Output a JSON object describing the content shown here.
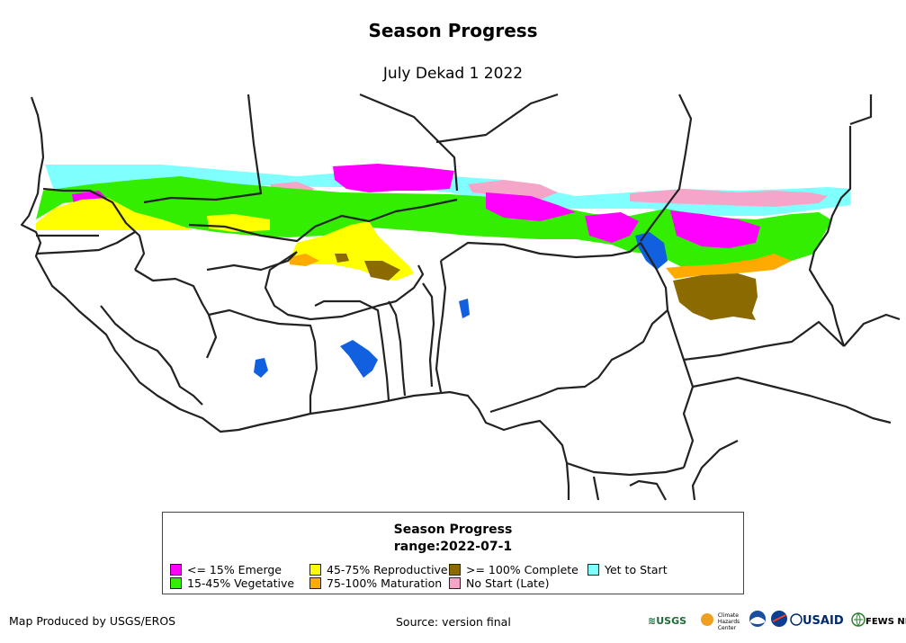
{
  "header": {
    "title": "Season Progress",
    "subtitle": "July Dekad 1 2022"
  },
  "legend": {
    "title": "Season Progress",
    "subtitle": "range:2022-07-1",
    "items": [
      {
        "label": "<= 15% Emerge",
        "color": "#ff00ff"
      },
      {
        "label": "15-45% Vegetative",
        "color": "#33ee00"
      },
      {
        "label": "45-75% Reproductive",
        "color": "#ffff00"
      },
      {
        "label": "75-100% Maturation",
        "color": "#ffaa00"
      },
      {
        "label": ">= 100% Complete",
        "color": "#8b6a00"
      },
      {
        "label": "No Start (Late)",
        "color": "#f5a6c8"
      },
      {
        "label": "Yet to Start",
        "color": "#80ffff"
      }
    ]
  },
  "map": {
    "water_color": "#1060e0",
    "border_color": "#222222"
  },
  "footer": {
    "produced_by": "Map Produced by USGS/EROS",
    "source": "Source: version final"
  },
  "logos": {
    "usgs": "USGS",
    "chc": "Climate Hazards Center",
    "usaid": "USAID",
    "fewsnet": "FEWS NET"
  }
}
